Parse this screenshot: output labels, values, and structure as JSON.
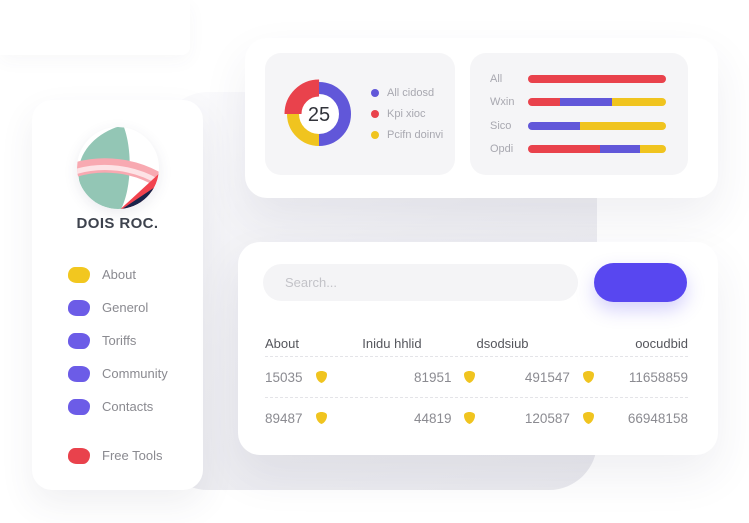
{
  "brand": {
    "name": "DOIS ROC."
  },
  "sidebar": {
    "items": [
      {
        "label": "About",
        "color": "#F2C71F",
        "separated": false
      },
      {
        "label": "Generol",
        "color": "#6C5CE7",
        "separated": false
      },
      {
        "label": "Toriffs",
        "color": "#6C5CE7",
        "separated": false
      },
      {
        "label": "Community",
        "color": "#6C5CE7",
        "separated": false
      },
      {
        "label": "Contacts",
        "color": "#6C5CE7",
        "separated": false
      },
      {
        "label": "Free Tools",
        "color": "#E9424C",
        "separated": true
      }
    ]
  },
  "table_card": {
    "search_placeholder": "Search...",
    "button_label": "",
    "columns": [
      "About",
      "Inidu hhlid",
      "dsodsiub",
      "oocudbid"
    ],
    "rows": [
      [
        "15035",
        "81951",
        "491547",
        "11658859"
      ],
      [
        "89487",
        "44819",
        "120587",
        "66948158"
      ]
    ]
  },
  "colors": {
    "accent_blue": "#5847F0",
    "chart_blue": "#6157D9",
    "chart_red": "#E9424C",
    "chart_yellow": "#F0C41F",
    "canvas_gray": "#ECECF0",
    "panel_gray": "#F5F5F7"
  },
  "chart_data": [
    {
      "type": "pie",
      "subtype": "donut",
      "center_value": "25",
      "legend": [
        {
          "label": "All cidosd",
          "color": "#6157D9"
        },
        {
          "label": "Kpi xioc",
          "color": "#E9424C"
        },
        {
          "label": "Pcifn doinvi",
          "color": "#F0C41F"
        }
      ],
      "segments": [
        {
          "color": "#6157D9",
          "value": 50,
          "thick": false
        },
        {
          "color": "#F0C41F",
          "value": 25,
          "thick": false
        },
        {
          "color": "#E9424C",
          "value": 25,
          "thick": true
        }
      ]
    },
    {
      "type": "bar",
      "subtype": "horizontal-stacked",
      "categories": [
        "All",
        "Wxin",
        "Sico",
        "Opdi"
      ],
      "rows": [
        {
          "label": "All",
          "segments": [
            {
              "color": "#E9424C",
              "value": 100
            }
          ]
        },
        {
          "label": "Wxin",
          "segments": [
            {
              "color": "#E9424C",
              "value": 23
            },
            {
              "color": "#6157D9",
              "value": 38
            },
            {
              "color": "#F0C41F",
              "value": 39
            }
          ]
        },
        {
          "label": "Sico",
          "segments": [
            {
              "color": "#6157D9",
              "value": 38
            },
            {
              "color": "#F0C41F",
              "value": 62
            }
          ]
        },
        {
          "label": "Opdi",
          "segments": [
            {
              "color": "#E9424C",
              "value": 52
            },
            {
              "color": "#6157D9",
              "value": 29
            },
            {
              "color": "#F0C41F",
              "value": 19
            }
          ]
        }
      ]
    }
  ]
}
